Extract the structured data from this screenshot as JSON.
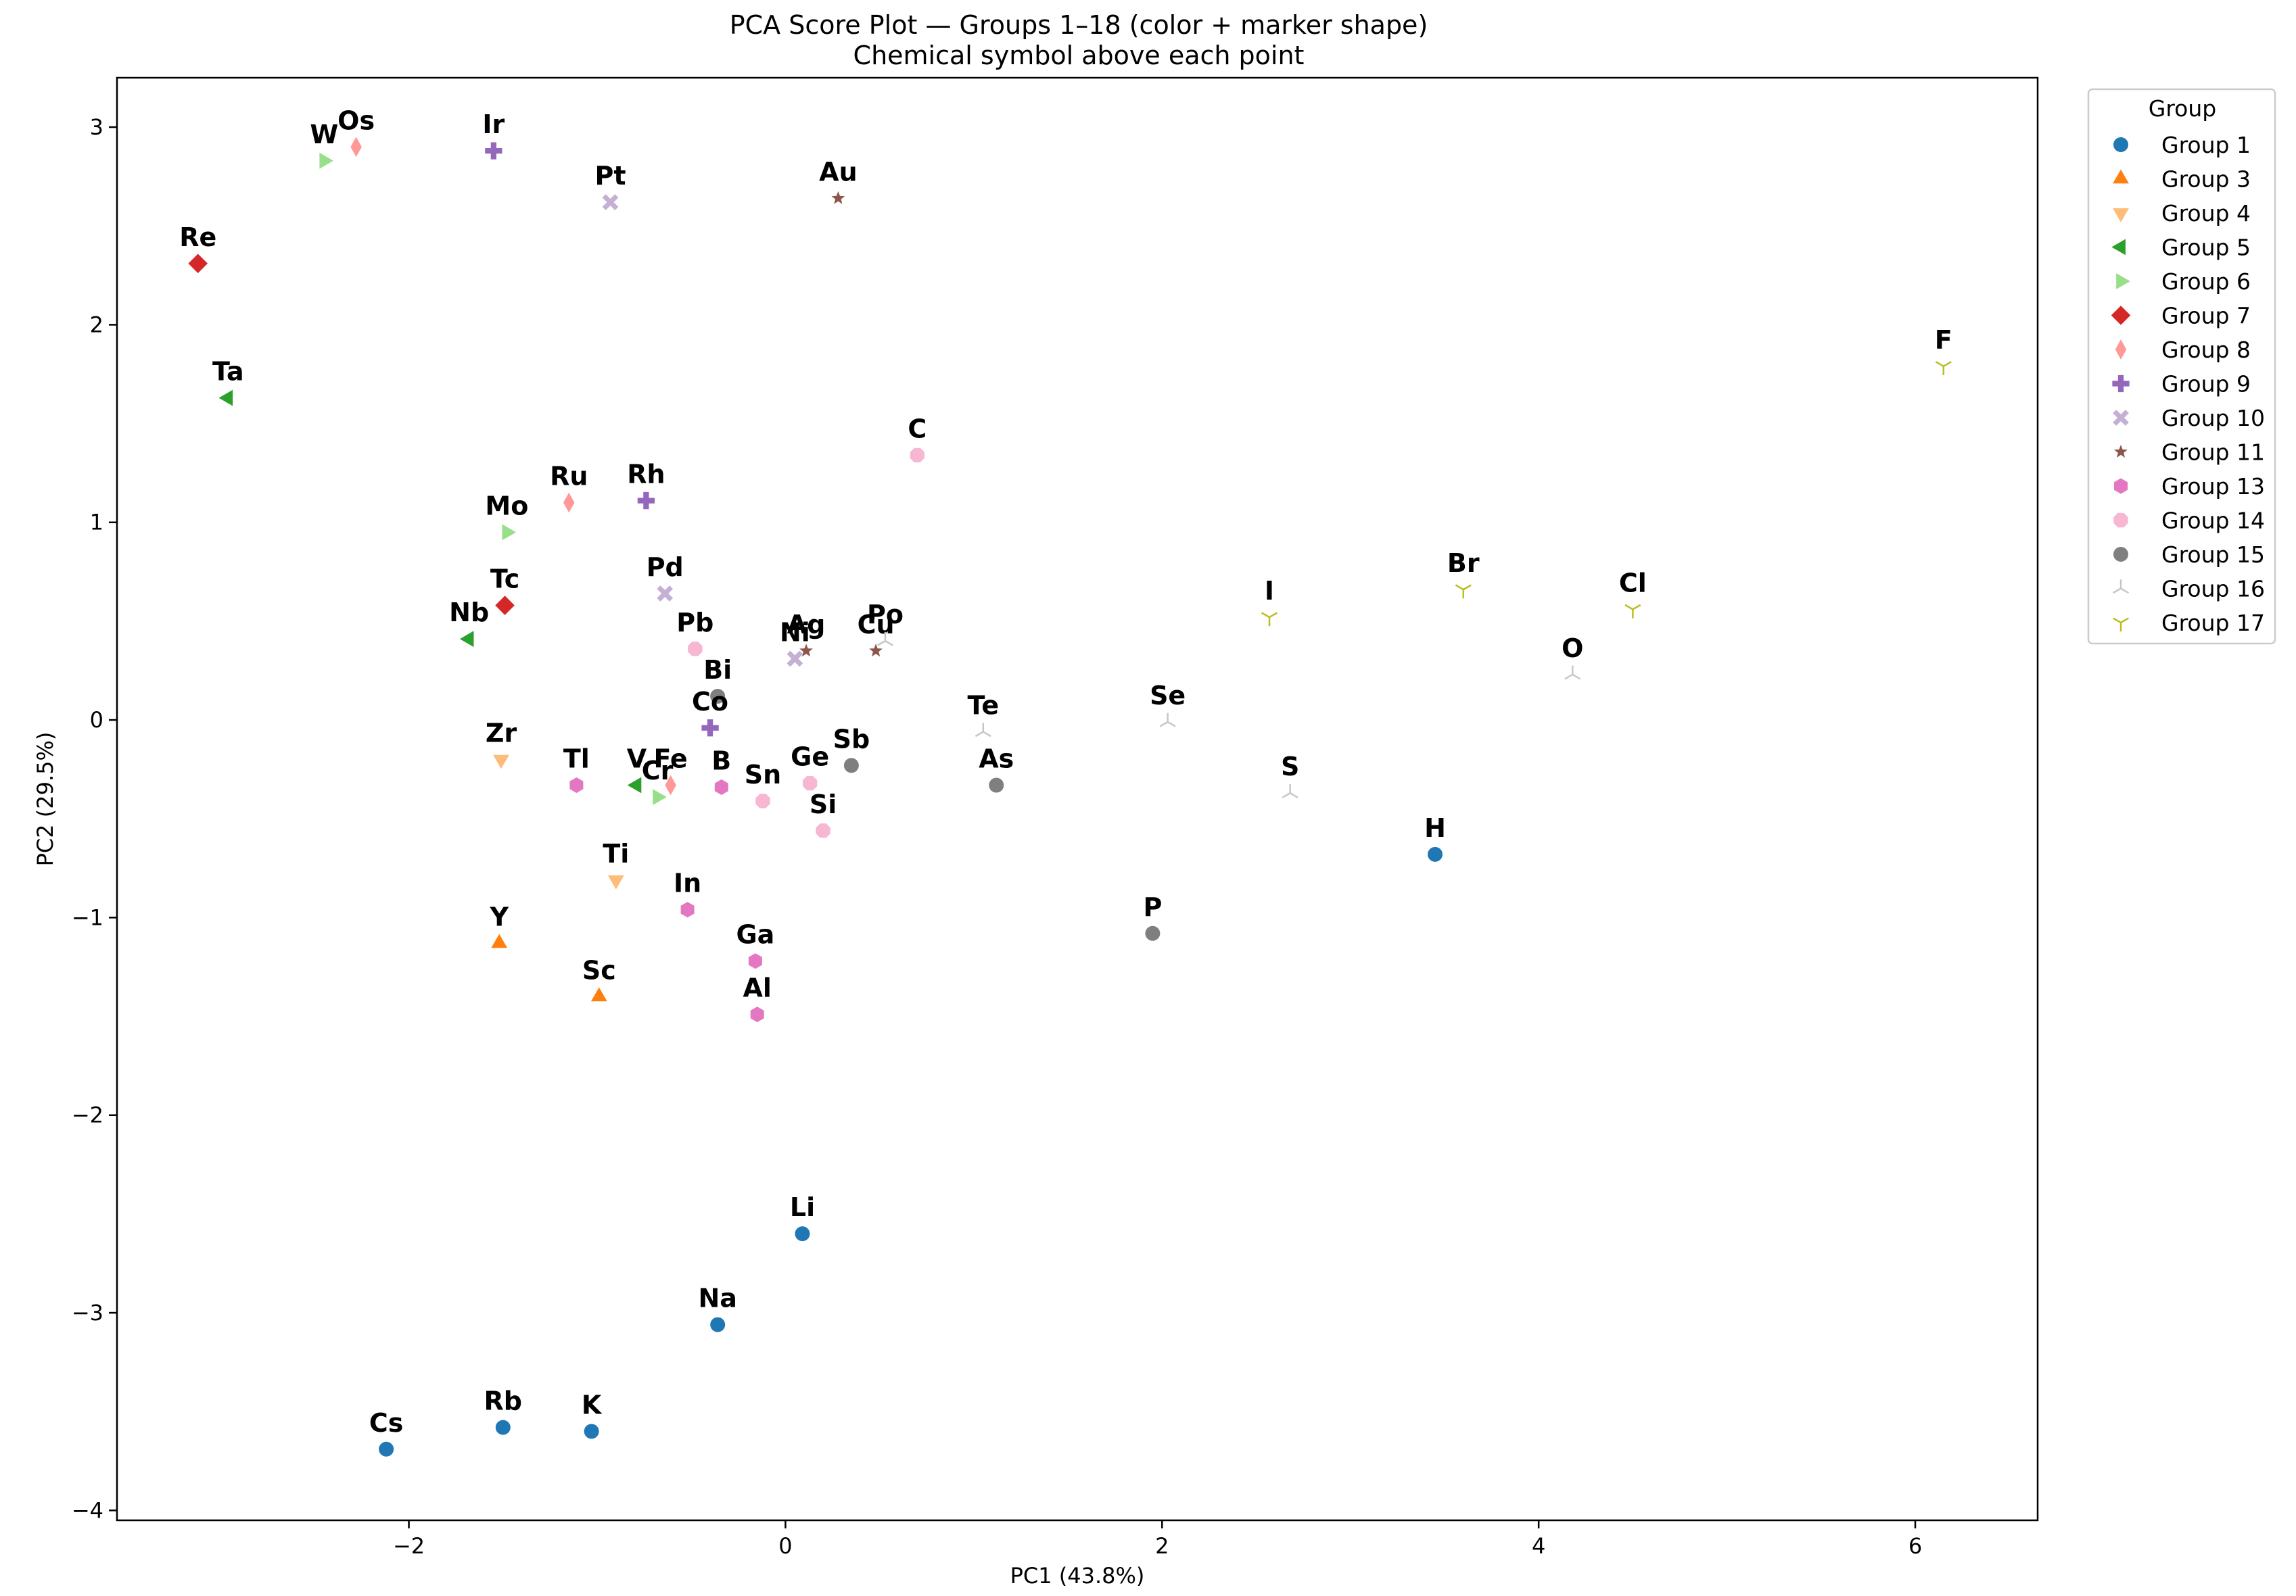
{
  "chart_data": {
    "type": "scatter",
    "title": "PCA Score Plot — Groups 1–18 (color + marker shape)",
    "subtitle": "Chemical symbol above each point",
    "xlabel": "PC1 (43.8%)",
    "ylabel": "PC2 (29.5%)",
    "xlim": [
      -3.55,
      6.65
    ],
    "ylim": [
      -4.05,
      3.25
    ],
    "xticks": [
      -2,
      0,
      2,
      4,
      6
    ],
    "yticks": [
      -4,
      -3,
      -2,
      -1,
      0,
      1,
      2,
      3
    ],
    "xtick_labels": [
      "−2",
      "0",
      "2",
      "4",
      "6"
    ],
    "ytick_labels": [
      "−4",
      "−3",
      "−2",
      "−1",
      "0",
      "1",
      "2",
      "3"
    ],
    "grid": false,
    "legend": {
      "title": "Group",
      "position": "outside-right-top",
      "entries": [
        {
          "label": "Group 1",
          "group": 1
        },
        {
          "label": "Group 3",
          "group": 3
        },
        {
          "label": "Group 4",
          "group": 4
        },
        {
          "label": "Group 5",
          "group": 5
        },
        {
          "label": "Group 6",
          "group": 6
        },
        {
          "label": "Group 7",
          "group": 7
        },
        {
          "label": "Group 8",
          "group": 8
        },
        {
          "label": "Group 9",
          "group": 9
        },
        {
          "label": "Group 10",
          "group": 10
        },
        {
          "label": "Group 11",
          "group": 11
        },
        {
          "label": "Group 13",
          "group": 13
        },
        {
          "label": "Group 14",
          "group": 14
        },
        {
          "label": "Group 15",
          "group": 15
        },
        {
          "label": "Group 16",
          "group": 16
        },
        {
          "label": "Group 17",
          "group": 17
        }
      ]
    },
    "group_styles": {
      "1": {
        "color": "#1f77b4",
        "marker": "circle"
      },
      "3": {
        "color": "#ff7f0e",
        "marker": "triangle-up"
      },
      "4": {
        "color": "#ffbb78",
        "marker": "triangle-down"
      },
      "5": {
        "color": "#2ca02c",
        "marker": "triangle-left"
      },
      "6": {
        "color": "#98df8a",
        "marker": "triangle-right"
      },
      "7": {
        "color": "#d62728",
        "marker": "diamond"
      },
      "8": {
        "color": "#ff9896",
        "marker": "thin-diamond"
      },
      "9": {
        "color": "#9467bd",
        "marker": "plus"
      },
      "10": {
        "color": "#c5b0d5",
        "marker": "x"
      },
      "11": {
        "color": "#8c564b",
        "marker": "star"
      },
      "13": {
        "color": "#e377c2",
        "marker": "hexagon"
      },
      "14": {
        "color": "#f7b6d2",
        "marker": "octagon"
      },
      "15": {
        "color": "#7f7f7f",
        "marker": "circle"
      },
      "16": {
        "color": "#c7c7c7",
        "marker": "tri-down"
      },
      "17": {
        "color": "#bcbd22",
        "marker": "tri-up"
      }
    },
    "points": [
      {
        "label": "Re",
        "group": 7,
        "x": -3.12,
        "y": 2.31
      },
      {
        "label": "W",
        "group": 6,
        "x": -2.45,
        "y": 2.83
      },
      {
        "label": "Os",
        "group": 8,
        "x": -2.28,
        "y": 2.9
      },
      {
        "label": "Ir",
        "group": 9,
        "x": -1.55,
        "y": 2.88
      },
      {
        "label": "Pt",
        "group": 10,
        "x": -0.93,
        "y": 2.62
      },
      {
        "label": "Au",
        "group": 11,
        "x": 0.28,
        "y": 2.64
      },
      {
        "label": "Ta",
        "group": 5,
        "x": -2.96,
        "y": 1.63
      },
      {
        "label": "F",
        "group": 17,
        "x": 6.15,
        "y": 1.79
      },
      {
        "label": "C",
        "group": 14,
        "x": 0.7,
        "y": 1.34
      },
      {
        "label": "Mo",
        "group": 6,
        "x": -1.48,
        "y": 0.95
      },
      {
        "label": "Ru",
        "group": 8,
        "x": -1.15,
        "y": 1.1
      },
      {
        "label": "Rh",
        "group": 9,
        "x": -0.74,
        "y": 1.11
      },
      {
        "label": "Pd",
        "group": 10,
        "x": -0.64,
        "y": 0.64
      },
      {
        "label": "Tc",
        "group": 7,
        "x": -1.49,
        "y": 0.58
      },
      {
        "label": "Nb",
        "group": 5,
        "x": -1.68,
        "y": 0.41
      },
      {
        "label": "Pb",
        "group": 14,
        "x": -0.48,
        "y": 0.36
      },
      {
        "label": "Ni",
        "group": 10,
        "x": 0.05,
        "y": 0.31
      },
      {
        "label": "Ag",
        "group": 11,
        "x": 0.11,
        "y": 0.35
      },
      {
        "label": "Cu",
        "group": 11,
        "x": 0.48,
        "y": 0.35
      },
      {
        "label": "Po",
        "group": 16,
        "x": 0.53,
        "y": 0.4
      },
      {
        "label": "Bi",
        "group": 15,
        "x": -0.36,
        "y": 0.12
      },
      {
        "label": "Co",
        "group": 9,
        "x": -0.4,
        "y": -0.04
      },
      {
        "label": "I",
        "group": 17,
        "x": 2.57,
        "y": 0.52
      },
      {
        "label": "Br",
        "group": 17,
        "x": 3.6,
        "y": 0.66
      },
      {
        "label": "Cl",
        "group": 17,
        "x": 4.5,
        "y": 0.56
      },
      {
        "label": "O",
        "group": 16,
        "x": 4.18,
        "y": 0.23
      },
      {
        "label": "Te",
        "group": 16,
        "x": 1.05,
        "y": -0.06
      },
      {
        "label": "Se",
        "group": 16,
        "x": 2.03,
        "y": -0.01
      },
      {
        "label": "Zr",
        "group": 4,
        "x": -1.51,
        "y": -0.2
      },
      {
        "label": "Tl",
        "group": 13,
        "x": -1.11,
        "y": -0.33
      },
      {
        "label": "V",
        "group": 5,
        "x": -0.79,
        "y": -0.33
      },
      {
        "label": "Fe",
        "group": 8,
        "x": -0.61,
        "y": -0.33
      },
      {
        "label": "Cr",
        "group": 6,
        "x": -0.68,
        "y": -0.39
      },
      {
        "label": "B",
        "group": 13,
        "x": -0.34,
        "y": -0.34
      },
      {
        "label": "Sn",
        "group": 14,
        "x": -0.12,
        "y": -0.41
      },
      {
        "label": "Ge",
        "group": 14,
        "x": 0.13,
        "y": -0.32
      },
      {
        "label": "Sb",
        "group": 15,
        "x": 0.35,
        "y": -0.23
      },
      {
        "label": "Si",
        "group": 14,
        "x": 0.2,
        "y": -0.56
      },
      {
        "label": "As",
        "group": 15,
        "x": 1.12,
        "y": -0.33
      },
      {
        "label": "S",
        "group": 16,
        "x": 2.68,
        "y": -0.37
      },
      {
        "label": "H",
        "group": 1,
        "x": 3.45,
        "y": -0.68
      },
      {
        "label": "Ti",
        "group": 4,
        "x": -0.9,
        "y": -0.81
      },
      {
        "label": "In",
        "group": 13,
        "x": -0.52,
        "y": -0.96
      },
      {
        "label": "Y",
        "group": 3,
        "x": -1.52,
        "y": -1.13
      },
      {
        "label": "P",
        "group": 15,
        "x": 1.95,
        "y": -1.08
      },
      {
        "label": "Ga",
        "group": 13,
        "x": -0.16,
        "y": -1.22
      },
      {
        "label": "Sc",
        "group": 3,
        "x": -0.99,
        "y": -1.4
      },
      {
        "label": "Al",
        "group": 13,
        "x": -0.15,
        "y": -1.49
      },
      {
        "label": "Li",
        "group": 1,
        "x": 0.09,
        "y": -2.6
      },
      {
        "label": "Na",
        "group": 1,
        "x": -0.36,
        "y": -3.06
      },
      {
        "label": "Cs",
        "group": 1,
        "x": -2.12,
        "y": -3.69
      },
      {
        "label": "Rb",
        "group": 1,
        "x": -1.5,
        "y": -3.58
      },
      {
        "label": "K",
        "group": 1,
        "x": -1.03,
        "y": -3.6
      }
    ]
  }
}
